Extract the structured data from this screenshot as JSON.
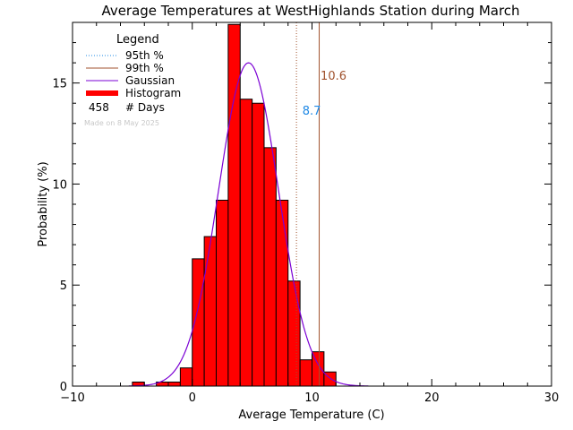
{
  "chart_data": {
    "type": "bar",
    "title": "Average Temperatures at WestHighlands Station during March",
    "xlabel": "Average Temperature (C)",
    "ylabel": "Probability (%)",
    "xlim": [
      -10,
      30
    ],
    "ylim": [
      0,
      18
    ],
    "xticks": [
      -10,
      0,
      10,
      20,
      30
    ],
    "yticks": [
      0,
      5,
      10,
      15
    ],
    "bin_width": 1,
    "bins": [
      {
        "x": -5,
        "y": 0.2
      },
      {
        "x": -3,
        "y": 0.2
      },
      {
        "x": -2,
        "y": 0.2
      },
      {
        "x": -1,
        "y": 0.9
      },
      {
        "x": 0,
        "y": 6.3
      },
      {
        "x": 1,
        "y": 7.4
      },
      {
        "x": 2,
        "y": 9.2
      },
      {
        "x": 3,
        "y": 17.9
      },
      {
        "x": 4,
        "y": 14.2
      },
      {
        "x": 5,
        "y": 14.0
      },
      {
        "x": 6,
        "y": 11.8
      },
      {
        "x": 7,
        "y": 9.2
      },
      {
        "x": 8,
        "y": 5.2
      },
      {
        "x": 9,
        "y": 1.3
      },
      {
        "x": 10,
        "y": 1.7
      },
      {
        "x": 11,
        "y": 0.7
      }
    ],
    "gaussian": {
      "mean": 4.7,
      "sigma": 2.5,
      "peak": 16.0
    },
    "p95": {
      "value": 8.7,
      "label": "8.7",
      "color": "#1e88e5"
    },
    "p99": {
      "value": 10.6,
      "label": "10.6",
      "color": "#a0522d"
    },
    "colors": {
      "histogram": "#ff0000",
      "gaussian": "#7b00d4"
    },
    "legend": {
      "title": "Legend",
      "items": [
        "95th %",
        "99th %",
        "Gaussian",
        "Histogram"
      ],
      "count_value": "458",
      "count_label": "# Days",
      "placement": "top-left"
    },
    "footnote": "Made on 8 May 2025"
  }
}
